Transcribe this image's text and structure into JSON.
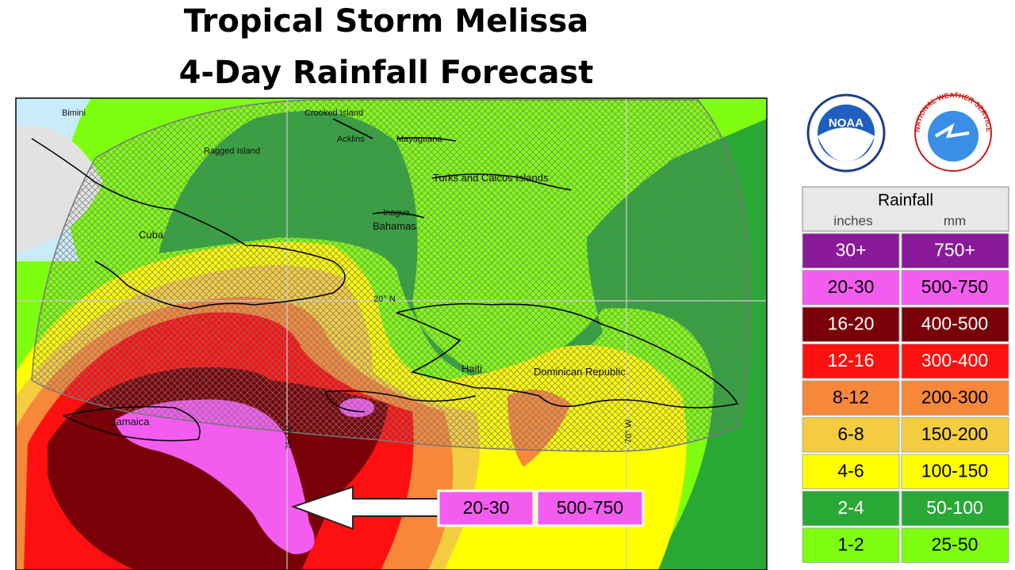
{
  "header": {
    "title_lines": [
      "Tropical Storm Melissa",
      "4-Day Rainfall Forecast"
    ]
  },
  "logos": {
    "noaa": "NOAA",
    "nws": "NATIONAL WEATHER SERVICE"
  },
  "map": {
    "labels": [
      "Bimini",
      "Crooked Island",
      "Acklins",
      "Mayaguana",
      "Ragged Island",
      "Turks and Caicos Islands",
      "Inagua",
      "Bahamas",
      "Cuba",
      "20° N",
      "Haiti",
      "Dominican Republic",
      "Jamaica",
      "75° W",
      "70° W"
    ]
  },
  "callout": {
    "inches": "20-30",
    "mm": "500-750",
    "color": "#f45cf0"
  },
  "legend": {
    "title": "Rainfall",
    "units": [
      "inches",
      "mm"
    ],
    "rows": [
      {
        "inches": "30+",
        "mm": "750+",
        "color": "#8a1a99"
      },
      {
        "inches": "20-30",
        "mm": "500-750",
        "color": "#f45cf0"
      },
      {
        "inches": "16-20",
        "mm": "400-500",
        "color": "#7a0008"
      },
      {
        "inches": "12-16",
        "mm": "300-400",
        "color": "#ff1010"
      },
      {
        "inches": "8-12",
        "mm": "200-300",
        "color": "#f7883a"
      },
      {
        "inches": "6-8",
        "mm": "150-200",
        "color": "#f4cc40"
      },
      {
        "inches": "4-6",
        "mm": "100-150",
        "color": "#ffff00"
      },
      {
        "inches": "2-4",
        "mm": "50-100",
        "color": "#2aa836"
      },
      {
        "inches": "1-2",
        "mm": "25-50",
        "color": "#7fff10"
      }
    ]
  }
}
